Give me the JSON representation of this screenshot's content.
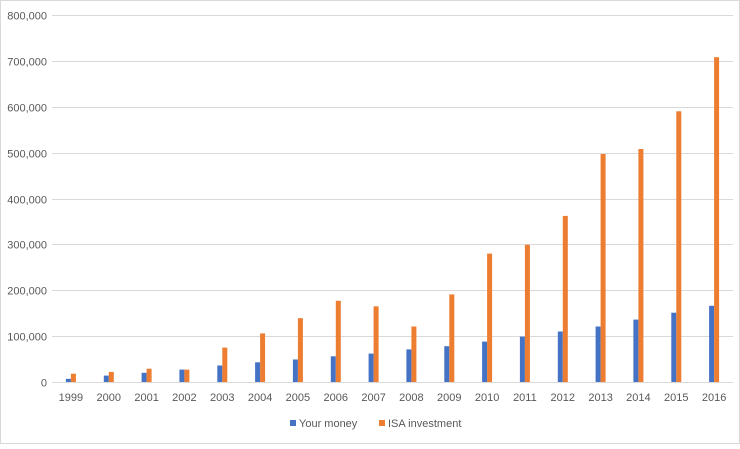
{
  "chart_data": {
    "type": "bar",
    "title": "",
    "xlabel": "",
    "ylabel": "",
    "categories": [
      "1999",
      "2000",
      "2001",
      "2002",
      "2003",
      "2004",
      "2005",
      "2006",
      "2007",
      "2008",
      "2009",
      "2010",
      "2011",
      "2012",
      "2013",
      "2014",
      "2015",
      "2016"
    ],
    "series": [
      {
        "name": "Your money",
        "color": "#4472C4",
        "values": [
          7000,
          14000,
          20000,
          27000,
          36000,
          43000,
          49000,
          56000,
          62000,
          71000,
          78000,
          88000,
          99000,
          110000,
          121000,
          136000,
          151000,
          166000
        ]
      },
      {
        "name": "ISA investment",
        "color": "#ED7D31",
        "values": [
          18000,
          22000,
          29000,
          27000,
          75000,
          106000,
          139000,
          177000,
          165000,
          121000,
          191000,
          280000,
          299000,
          362000,
          497000,
          508000,
          590000,
          708000
        ]
      }
    ],
    "ylim": [
      0,
      800000
    ],
    "yticks": [
      "0",
      "100,000",
      "200,000",
      "300,000",
      "400,000",
      "500,000",
      "600,000",
      "700,000",
      "800,000"
    ],
    "ytick_values": [
      0,
      100000,
      200000,
      300000,
      400000,
      500000,
      600000,
      700000,
      800000
    ],
    "grid": true,
    "legend_position": "bottom",
    "gridline_color": "#D9D9D9"
  }
}
